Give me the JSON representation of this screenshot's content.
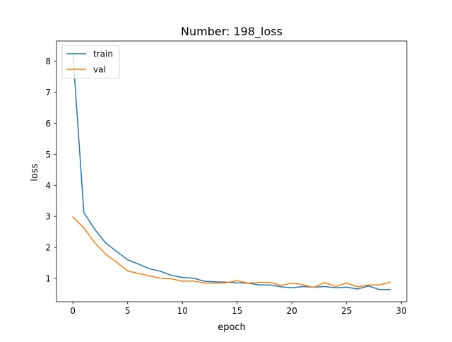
{
  "chart_data": {
    "type": "line",
    "title": "Number: 198_loss",
    "xlabel": "epoch",
    "ylabel": "loss",
    "xlim": [
      -1.5,
      30.5
    ],
    "ylim": [
      0.25,
      8.65
    ],
    "xticks": [
      0,
      5,
      10,
      15,
      20,
      25,
      30
    ],
    "yticks": [
      1,
      2,
      3,
      4,
      5,
      6,
      7,
      8
    ],
    "grid": false,
    "legend_position": "top-left",
    "x": [
      0,
      1,
      2,
      3,
      4,
      5,
      6,
      7,
      8,
      9,
      10,
      11,
      12,
      13,
      14,
      15,
      16,
      17,
      18,
      19,
      20,
      21,
      22,
      23,
      24,
      25,
      26,
      27,
      28,
      29
    ],
    "series": [
      {
        "name": "train",
        "color": "#1f77b4",
        "values": [
          8.25,
          3.12,
          2.58,
          2.14,
          1.87,
          1.6,
          1.46,
          1.31,
          1.23,
          1.1,
          1.03,
          1.01,
          0.91,
          0.89,
          0.88,
          0.86,
          0.85,
          0.79,
          0.79,
          0.73,
          0.7,
          0.74,
          0.72,
          0.74,
          0.7,
          0.72,
          0.66,
          0.76,
          0.64,
          0.64
        ]
      },
      {
        "name": "val",
        "color": "#ff7f0e",
        "values": [
          2.98,
          2.63,
          2.15,
          1.78,
          1.52,
          1.24,
          1.16,
          1.08,
          1.01,
          0.99,
          0.91,
          0.92,
          0.85,
          0.85,
          0.86,
          0.93,
          0.85,
          0.87,
          0.87,
          0.78,
          0.85,
          0.8,
          0.71,
          0.87,
          0.74,
          0.85,
          0.73,
          0.79,
          0.79,
          0.88
        ]
      }
    ]
  }
}
